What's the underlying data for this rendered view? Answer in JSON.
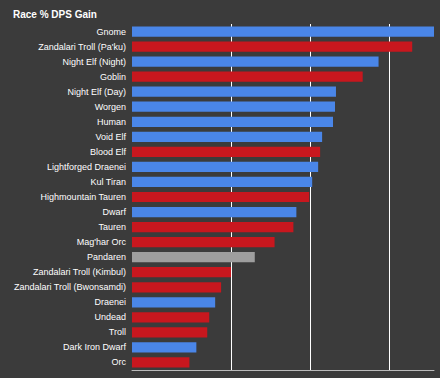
{
  "chart_data": {
    "type": "bar",
    "title": "Race % DPS Gain",
    "orientation": "horizontal",
    "categories": [
      "Gnome",
      "Zandalari Troll (Pa'ku)",
      "Night Elf (Night)",
      "Goblin",
      "Night Elf (Day)",
      "Worgen",
      "Human",
      "Void Elf",
      "Blood Elf",
      "Lightforged Draenei",
      "Kul Tiran",
      "Highmountain Tauren",
      "Dwarf",
      "Tauren",
      "Mag'har Orc",
      "Pandaren",
      "Zandalari Troll (Kimbul)",
      "Zandalari Troll (Bwonsamdi)",
      "Draenei",
      "Undead",
      "Troll",
      "Dark Iron Dwarf",
      "Orc"
    ],
    "values": [
      3.05,
      2.83,
      2.49,
      2.33,
      2.06,
      2.05,
      2.03,
      1.92,
      1.9,
      1.88,
      1.82,
      1.79,
      1.66,
      1.63,
      1.44,
      1.24,
      1.0,
      0.9,
      0.84,
      0.78,
      0.76,
      0.65,
      0.58
    ],
    "colors": [
      "#4a86e8",
      "#c8171e",
      "#4a86e8",
      "#c8171e",
      "#4a86e8",
      "#4a86e8",
      "#4a86e8",
      "#4a86e8",
      "#c8171e",
      "#4a86e8",
      "#4a86e8",
      "#c8171e",
      "#4a86e8",
      "#c8171e",
      "#c8171e",
      "#9e9e9e",
      "#c8171e",
      "#c8171e",
      "#4a86e8",
      "#c8171e",
      "#c8171e",
      "#4a86e8",
      "#c8171e"
    ],
    "xlim": [
      0,
      3.05
    ],
    "xticks": [
      1,
      1.8,
      2.6
    ],
    "grid": true,
    "tick_labels": "y"
  }
}
